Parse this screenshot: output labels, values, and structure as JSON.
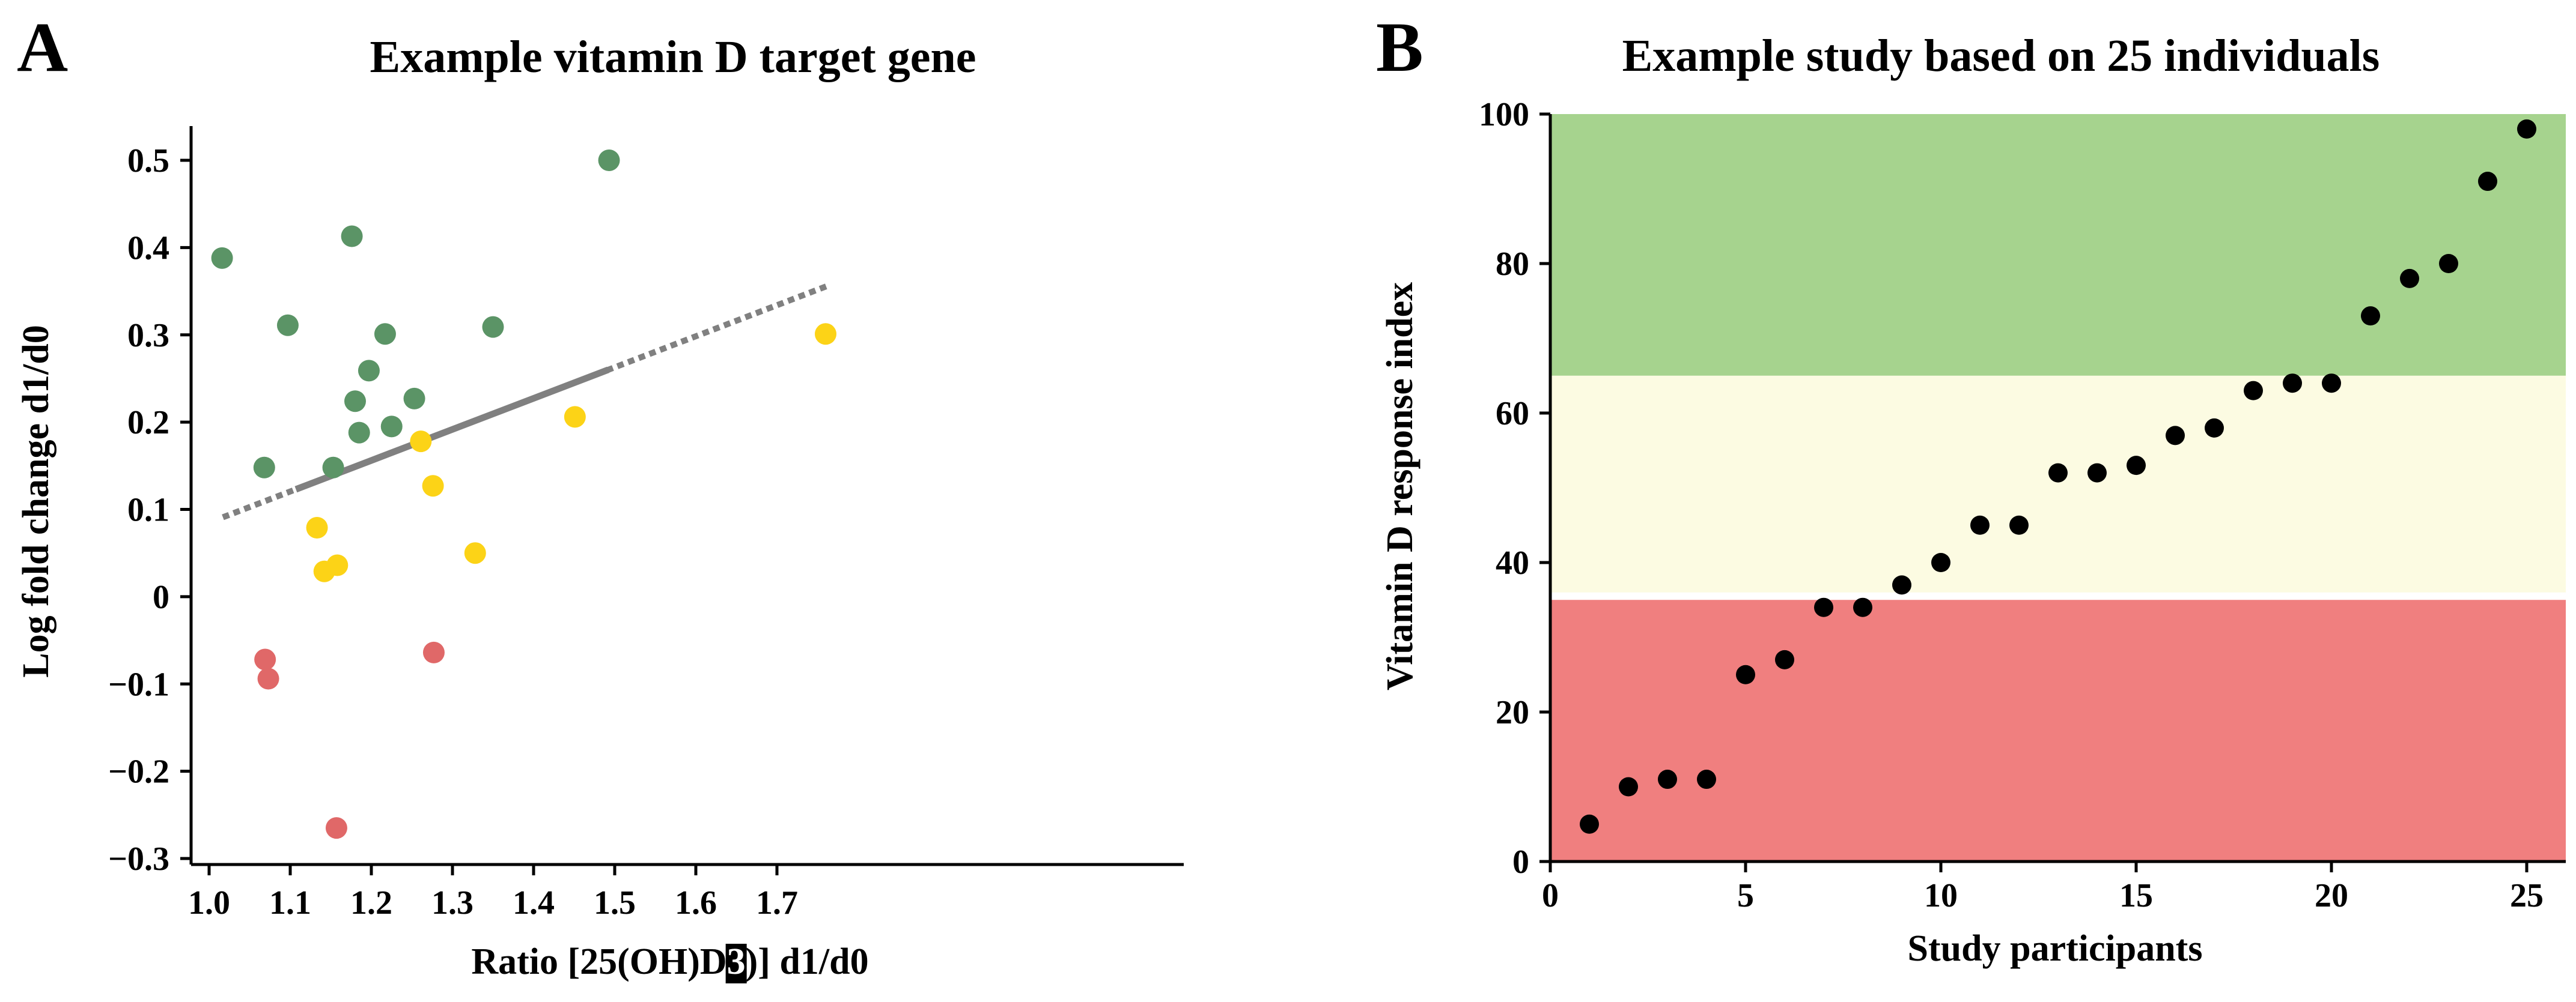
{
  "panel_a": {
    "letter": "A"
  },
  "panel_b": {
    "letter": "B"
  },
  "chart_data": [
    {
      "type": "scatter",
      "title": "Example vitamin D target gene",
      "xlabel": "Ratio [25(OH)D3)] d1/d0",
      "xlabel_parts": {
        "before": "Ratio [25(OH)D",
        "highlight": "3",
        "after": ")] d1/d0"
      },
      "ylabel": "Log fold change d1/d0",
      "xlim": [
        0.98,
        1.82
      ],
      "ylim": [
        -0.3,
        0.5
      ],
      "xticks": [
        "1.0",
        "1.1",
        "1.2",
        "1.3",
        "1.4",
        "1.5",
        "1.6",
        "1.7"
      ],
      "yticks": [
        "0.5",
        "0.4",
        "0.3",
        "0.2",
        "0.1",
        "0",
        "−0.1",
        "−0.2",
        "−0.3"
      ],
      "grid": false,
      "series": [
        {
          "color": "#5b9466",
          "points": [
            [
              1.016,
              0.388
            ],
            [
              1.068,
              0.148
            ],
            [
              1.097,
              0.311
            ],
            [
              1.153,
              0.148
            ],
            [
              1.176,
              0.413
            ],
            [
              1.18,
              0.224
            ],
            [
              1.185,
              0.188
            ],
            [
              1.197,
              0.259
            ],
            [
              1.217,
              0.301
            ],
            [
              1.225,
              0.195
            ],
            [
              1.253,
              0.227
            ],
            [
              1.35,
              0.309
            ],
            [
              1.493,
              0.5
            ]
          ]
        },
        {
          "color": "#fcd317",
          "points": [
            [
              1.133,
              0.079
            ],
            [
              1.142,
              0.029
            ],
            [
              1.158,
              0.036
            ],
            [
              1.261,
              0.178
            ],
            [
              1.276,
              0.127
            ],
            [
              1.328,
              0.05
            ],
            [
              1.451,
              0.206
            ],
            [
              1.76,
              0.301
            ]
          ]
        },
        {
          "color": "#e06868",
          "points": [
            [
              1.069,
              -0.072
            ],
            [
              1.073,
              -0.094
            ],
            [
              1.277,
              -0.064
            ],
            [
              1.157,
              -0.265
            ]
          ]
        }
      ],
      "trendline": {
        "color": "#808080",
        "dotted": [
          [
            1.017,
            0.091
          ],
          [
            1.762,
            0.356
          ]
        ],
        "solid": [
          [
            1.107,
            0.123
          ],
          [
            1.492,
            0.26
          ]
        ]
      }
    },
    {
      "type": "scatter",
      "title": "Example study based on 25 individuals",
      "xlabel": "Study participants",
      "ylabel": "Vitamin D response index",
      "xlim": [
        0,
        26.5
      ],
      "ylim": [
        0,
        100
      ],
      "xticks": [
        "0",
        "5",
        "10",
        "15",
        "20",
        "25"
      ],
      "yticks": [
        "0",
        "20",
        "40",
        "60",
        "80",
        "100"
      ],
      "grid": false,
      "bands": [
        {
          "from": 0,
          "to": 35,
          "color": "#f07f7f"
        },
        {
          "from": 36,
          "to": 65,
          "color": "#fcfbe2"
        },
        {
          "from": 65,
          "to": 100,
          "color": "#a6d38e"
        }
      ],
      "series": [
        {
          "color": "#000000",
          "x": [
            1,
            2,
            3,
            4,
            5,
            6,
            7,
            8,
            9,
            10,
            11,
            12,
            13,
            14,
            15,
            16,
            17,
            18,
            19,
            20,
            21,
            22,
            23,
            24,
            25
          ],
          "y": [
            5,
            10,
            11,
            11,
            25,
            27,
            34,
            34,
            37,
            40,
            45,
            45,
            52,
            52,
            53,
            57,
            58,
            63,
            64,
            64,
            73,
            78,
            80,
            91,
            98
          ]
        }
      ]
    }
  ]
}
